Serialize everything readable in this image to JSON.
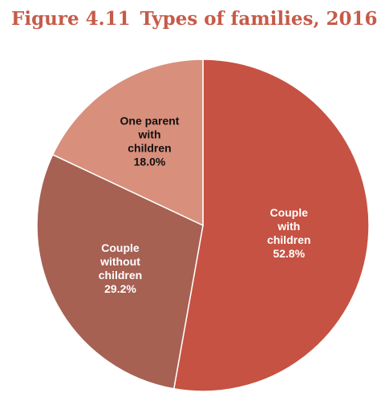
{
  "figure": {
    "number": "Figure 4.11",
    "title": "Types of families, 2016"
  },
  "chart_data": {
    "type": "pie",
    "title": "Types of families, 2016",
    "start_angle_deg": 0,
    "direction": "clockwise",
    "slices": [
      {
        "label_lines": [
          "Couple",
          "with",
          "children"
        ],
        "value": 52.8,
        "value_label": "52.8%",
        "color": "#c65243",
        "label_color": "#ffffff"
      },
      {
        "label_lines": [
          "Couple",
          "without",
          "children"
        ],
        "value": 29.2,
        "value_label": "29.2%",
        "color": "#a66153",
        "label_color": "#ffffff"
      },
      {
        "label_lines": [
          "One parent",
          "with",
          "children"
        ],
        "value": 18.0,
        "value_label": "18.0%",
        "color": "#d88f7c",
        "label_color": "#111111"
      }
    ]
  }
}
